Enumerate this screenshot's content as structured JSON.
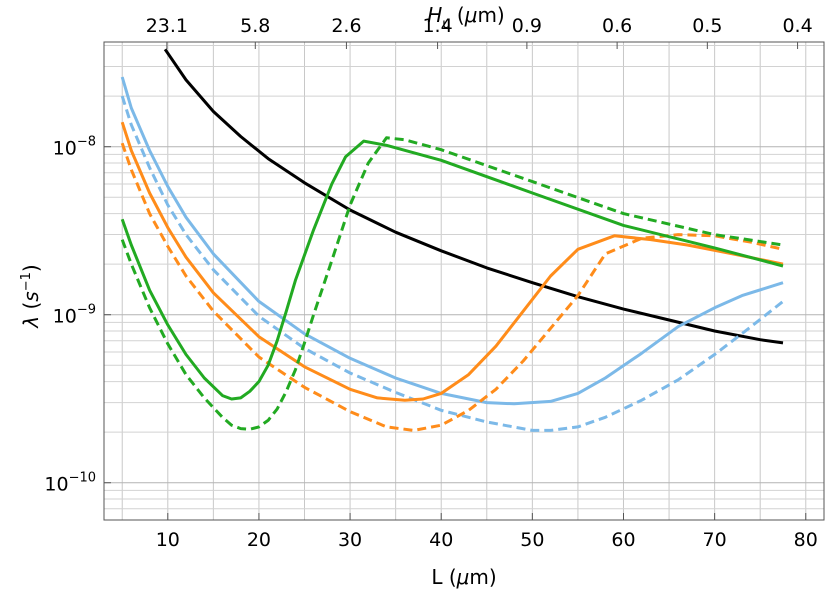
{
  "chart_data": {
    "type": "line",
    "title": "",
    "xlabel": "L (μm)",
    "ylabel": "λ (s⁻¹)",
    "top_axis_label": "H_u (μm)",
    "xlim": [
      3,
      82
    ],
    "ylim": [
      6e-11,
      4.2e-08
    ],
    "y_scale": "log",
    "grid": true,
    "x_ticks": [
      10,
      20,
      30,
      40,
      50,
      60,
      70,
      80
    ],
    "x_tick_labels": [
      "10",
      "20",
      "30",
      "40",
      "50",
      "60",
      "70",
      "80"
    ],
    "y_ticks": [
      1e-10,
      1e-09,
      1e-08
    ],
    "y_tick_labels": [
      {
        "base": "10",
        "exp": "−10"
      },
      {
        "base": "10",
        "exp": "−9"
      },
      {
        "base": "10",
        "exp": "−8"
      }
    ],
    "top_ticks": [
      {
        "x": 9.9,
        "label": "23.1"
      },
      {
        "x": 19.6,
        "label": "5.8"
      },
      {
        "x": 29.6,
        "label": "2.6"
      },
      {
        "x": 39.6,
        "label": "1.4"
      },
      {
        "x": 49.4,
        "label": "0.9"
      },
      {
        "x": 59.3,
        "label": "0.6"
      },
      {
        "x": 69.2,
        "label": "0.5"
      },
      {
        "x": 79.1,
        "label": "0.4"
      }
    ],
    "series": [
      {
        "color": "#000000",
        "dashed": false,
        "x": [
          9.7,
          12,
          15,
          18,
          21,
          25,
          30,
          35,
          40,
          45,
          50,
          55,
          60,
          65,
          70,
          75,
          77.5
        ],
        "y": [
          3.8e-08,
          2.5e-08,
          1.62e-08,
          1.15e-08,
          8.5e-09,
          6.1e-09,
          4.2e-09,
          3.1e-09,
          2.4e-09,
          1.9e-09,
          1.55e-09,
          1.28e-09,
          1.08e-09,
          9.3e-10,
          8e-10,
          7.1e-10,
          6.8e-10
        ]
      },
      {
        "color": "#7cb9e8",
        "dashed": false,
        "x": [
          5,
          6,
          8,
          10,
          12,
          15,
          20,
          25,
          30,
          35,
          40,
          45,
          48,
          52,
          55,
          58,
          62,
          66,
          70,
          73,
          77.5
        ],
        "y": [
          2.6e-08,
          1.7e-08,
          9.5e-09,
          5.8e-09,
          3.8e-09,
          2.3e-09,
          1.2e-09,
          7.7e-10,
          5.5e-10,
          4.2e-10,
          3.4e-10,
          3e-10,
          2.95e-10,
          3.05e-10,
          3.4e-10,
          4.2e-10,
          5.9e-10,
          8.5e-10,
          1.1e-09,
          1.3e-09,
          1.55e-09
        ]
      },
      {
        "color": "#7cb9e8",
        "dashed": true,
        "x": [
          5,
          6,
          8,
          10,
          12,
          15,
          20,
          25,
          30,
          35,
          40,
          45,
          50,
          52,
          55,
          58,
          62,
          66,
          70,
          74,
          77.5
        ],
        "y": [
          2e-08,
          1.35e-08,
          7.5e-09,
          4.5e-09,
          3e-09,
          1.85e-09,
          9.8e-10,
          6.3e-10,
          4.5e-10,
          3.45e-10,
          2.7e-10,
          2.3e-10,
          2.05e-10,
          2.05e-10,
          2.15e-10,
          2.45e-10,
          3.1e-10,
          4.1e-10,
          5.8e-10,
          8.5e-10,
          1.2e-09
        ]
      },
      {
        "color": "#ff8c1a",
        "dashed": false,
        "x": [
          5,
          6,
          8,
          10,
          12,
          15,
          20,
          25,
          30,
          33,
          36,
          38,
          40,
          43,
          46,
          49,
          52,
          55,
          59,
          63,
          67,
          72,
          77.5
        ],
        "y": [
          1.4e-08,
          9.5e-09,
          5.3e-09,
          3.3e-09,
          2.2e-09,
          1.35e-09,
          7.4e-10,
          4.9e-10,
          3.6e-10,
          3.2e-10,
          3.1e-10,
          3.15e-10,
          3.4e-10,
          4.4e-10,
          6.5e-10,
          1.05e-09,
          1.7e-09,
          2.45e-09,
          2.95e-09,
          2.8e-09,
          2.6e-09,
          2.3e-09,
          2e-09
        ]
      },
      {
        "color": "#ff8c1a",
        "dashed": true,
        "x": [
          5,
          6,
          8,
          10,
          12,
          15,
          20,
          25,
          30,
          34,
          37,
          40,
          43,
          46,
          49,
          52,
          55,
          58,
          62,
          66,
          70,
          74,
          77.5
        ],
        "y": [
          1.05e-08,
          7.3e-09,
          4e-09,
          2.55e-09,
          1.7e-09,
          1.05e-09,
          5.6e-10,
          3.7e-10,
          2.65e-10,
          2.15e-10,
          2.05e-10,
          2.2e-10,
          2.7e-10,
          3.6e-10,
          5.3e-10,
          8.3e-10,
          1.3e-09,
          2.3e-09,
          2.85e-09,
          3e-09,
          2.95e-09,
          2.7e-09,
          2.45e-09
        ]
      },
      {
        "color": "#22aa22",
        "dashed": false,
        "x": [
          5,
          6,
          8,
          10,
          12,
          14,
          16,
          17,
          18,
          19,
          20,
          21,
          22,
          23,
          24,
          26,
          28,
          29.5,
          31.5,
          34,
          40,
          50,
          60,
          70,
          77.5
        ],
        "y": [
          3.7e-09,
          2.6e-09,
          1.4e-09,
          8.7e-10,
          5.8e-10,
          4.2e-10,
          3.3e-10,
          3.15e-10,
          3.2e-10,
          3.5e-10,
          4e-10,
          5e-10,
          7e-10,
          1.05e-09,
          1.6e-09,
          3.2e-09,
          6e-09,
          8.7e-09,
          1.08e-08,
          1.02e-08,
          8.3e-09,
          5.3e-09,
          3.4e-09,
          2.5e-09,
          1.95e-09
        ]
      },
      {
        "color": "#22aa22",
        "dashed": true,
        "x": [
          5,
          6,
          8,
          10,
          12,
          14,
          16,
          17,
          18,
          19,
          20,
          21,
          22,
          23,
          24,
          25,
          26,
          28,
          30,
          32,
          34,
          36,
          40,
          50,
          60,
          70,
          77.5
        ],
        "y": [
          2.8e-09,
          2e-09,
          1.1e-09,
          6.7e-10,
          4.4e-10,
          3.2e-10,
          2.45e-10,
          2.2e-10,
          2.1e-10,
          2.08e-10,
          2.15e-10,
          2.35e-10,
          2.75e-10,
          3.5e-10,
          4.7e-10,
          6.8e-10,
          1e-09,
          2.1e-09,
          4.5e-09,
          8e-09,
          1.13e-08,
          1.1e-08,
          9.6e-09,
          6.2e-09,
          4e-09,
          3e-09,
          2.6e-09
        ]
      }
    ]
  }
}
